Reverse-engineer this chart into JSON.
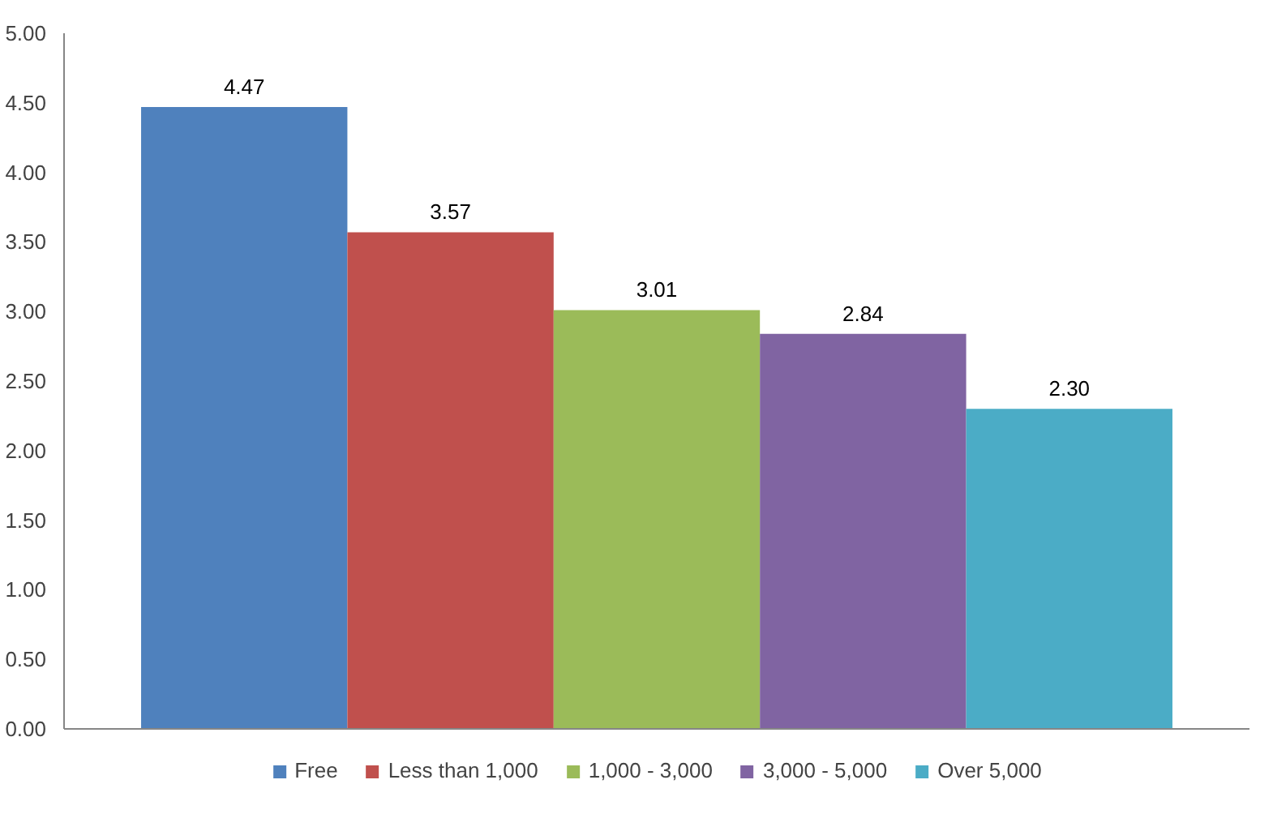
{
  "chart_data": {
    "type": "bar",
    "categories": [
      null
    ],
    "series": [
      {
        "name": "Free",
        "color": "#4f81bd",
        "values": [
          4.47
        ],
        "value_labels": [
          "4.47"
        ]
      },
      {
        "name": "Less than 1,000",
        "color": "#c0504d",
        "values": [
          3.57
        ],
        "value_labels": [
          "3.57"
        ]
      },
      {
        "name": "1,000 - 3,000",
        "color": "#9bbb59",
        "values": [
          3.01
        ],
        "value_labels": [
          "3.01"
        ]
      },
      {
        "name": "3,000 - 5,000",
        "color": "#8064a2",
        "values": [
          2.84
        ],
        "value_labels": [
          "2.84"
        ]
      },
      {
        "name": "Over 5,000",
        "color": "#4bacc6",
        "values": [
          2.3
        ],
        "value_labels": [
          "2.30"
        ]
      }
    ],
    "ylim": [
      0,
      5
    ],
    "yticks": [
      {
        "value": 0,
        "label": "0.00"
      },
      {
        "value": 0.5,
        "label": "0.50"
      },
      {
        "value": 1,
        "label": "1.00"
      },
      {
        "value": 1.5,
        "label": "1.50"
      },
      {
        "value": 2,
        "label": "2.00"
      },
      {
        "value": 2.5,
        "label": "2.50"
      },
      {
        "value": 3,
        "label": "3.00"
      },
      {
        "value": 3.5,
        "label": "3.50"
      },
      {
        "value": 4,
        "label": "4.00"
      },
      {
        "value": 4.5,
        "label": "4.50"
      },
      {
        "value": 5,
        "label": "5.00"
      }
    ],
    "data_labels": true,
    "grid": false,
    "legend": "bottom"
  }
}
